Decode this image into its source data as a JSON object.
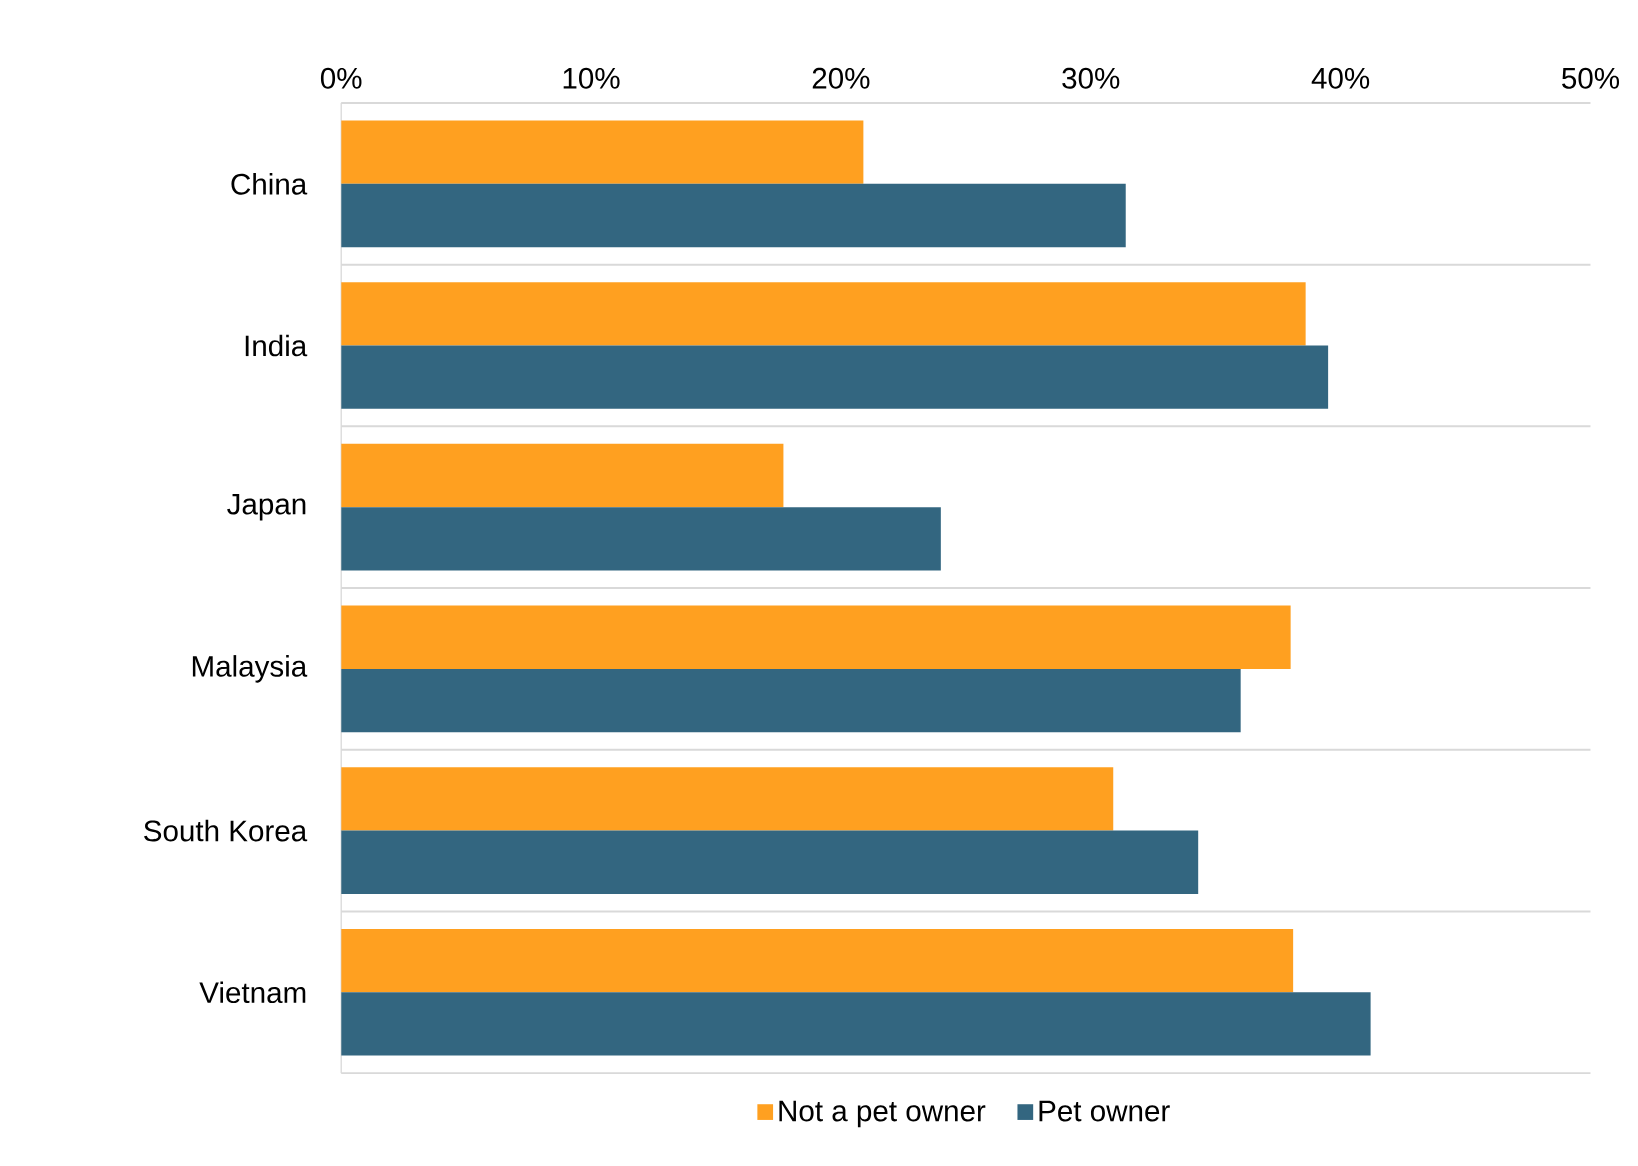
{
  "chart_data": {
    "type": "bar",
    "orientation": "horizontal",
    "categories": [
      "China",
      "India",
      "Japan",
      "Malaysia",
      "South Korea",
      "Vietnam"
    ],
    "series": [
      {
        "name": "Not a pet owner",
        "color": "#ffa020",
        "values": [
          20.9,
          38.6,
          17.7,
          38.0,
          30.9,
          38.1
        ]
      },
      {
        "name": "Pet owner",
        "color": "#336680",
        "values": [
          31.4,
          39.5,
          24.0,
          36.0,
          34.3,
          41.2
        ]
      }
    ],
    "xlim": [
      0,
      50
    ],
    "xticks": [
      {
        "value": 0,
        "label": "0%"
      },
      {
        "value": 10,
        "label": "10%"
      },
      {
        "value": 20,
        "label": "20%"
      },
      {
        "value": 30,
        "label": "30%"
      },
      {
        "value": 40,
        "label": "40%"
      },
      {
        "value": 50,
        "label": "50%"
      }
    ],
    "grid": "y",
    "legend": "bottom"
  }
}
